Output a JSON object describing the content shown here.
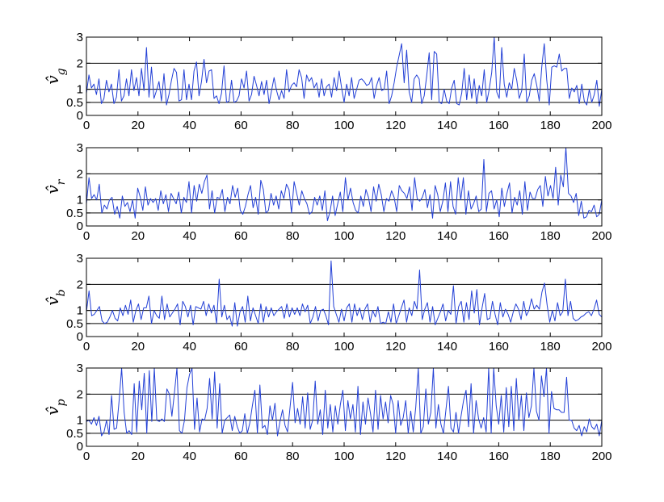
{
  "chart_data": [
    {
      "type": "line",
      "ylabel": "v̂g",
      "ylabel_base": "v̂",
      "ylabel_sub": "g",
      "xlim": [
        0,
        200
      ],
      "ylim": [
        0,
        3
      ],
      "xticks": [
        0,
        20,
        40,
        60,
        80,
        100,
        120,
        140,
        160,
        180,
        200
      ],
      "yticks": [
        0,
        0.5,
        1,
        2,
        3
      ],
      "hlines": [
        0.5,
        1,
        2
      ],
      "series": [
        {
          "color": "#2340d6",
          "values": [
            0.85,
            1.55,
            1.05,
            1.2,
            0.8,
            1.4,
            0.45,
            0.65,
            1.35,
            0.9,
            1.2,
            0.45,
            0.7,
            1.75,
            0.55,
            0.75,
            1.4,
            0.75,
            1.75,
            0.95,
            1.45,
            0.75,
            1.8,
            0.95,
            2.6,
            0.7,
            1.85,
            0.65,
            0.95,
            1.3,
            0.55,
            1.6,
            0.4,
            0.8,
            1.35,
            1.8,
            1.65,
            0.55,
            0.6,
            1.75,
            0.6,
            1.2,
            0.6,
            1.7,
            2.05,
            0.75,
            1.3,
            2.15,
            1.25,
            1.7,
            1.75,
            0.65,
            0.75,
            0.45,
            0.85,
            1.9,
            0.5,
            0.55,
            1.35,
            0.5,
            0.55,
            0.75,
            1.4,
            1.05,
            1.7,
            0.55,
            0.8,
            1.5,
            1.15,
            0.75,
            1.3,
            0.8,
            1.35,
            0.45,
            0.95,
            1.45,
            0.95,
            0.6,
            0.95,
            0.65,
            1.75,
            0.9,
            1.15,
            1.25,
            1.1,
            1.75,
            1.45,
            0.65,
            1.55,
            1.3,
            1.45,
            1.05,
            1.25,
            0.7,
            1.4,
            0.75,
            1.1,
            1.2,
            0.7,
            1.45,
            0.95,
            1.7,
            1.05,
            0.5,
            1.2,
            0.75,
            1.45,
            0.65,
            1.0,
            1.35,
            1.4,
            1.3,
            1.15,
            1.2,
            1.45,
            0.65,
            1.15,
            1.45,
            0.95,
            1.0,
            1.7,
            0.45,
            0.75,
            1.25,
            1.85,
            2.3,
            2.75,
            1.25,
            2.5,
            0.9,
            0.5,
            1.4,
            1.55,
            1.4,
            0.45,
            0.75,
            1.5,
            2.4,
            0.6,
            2.45,
            2.35,
            0.5,
            0.45,
            1.0,
            0.55,
            0.45,
            1.05,
            1.35,
            0.45,
            0.4,
            0.85,
            1.8,
            0.6,
            1.55,
            0.65,
            1.4,
            0.45,
            1.15,
            0.75,
            1.75,
            0.5,
            1.0,
            1.65,
            3.0,
            0.9,
            0.65,
            2.6,
            1.2,
            0.7,
            1.25,
            1.0,
            1.8,
            1.35,
            0.65,
            0.95,
            2.35,
            0.5,
            0.75,
            1.35,
            1.6,
            1.15,
            0.55,
            1.85,
            2.75,
            1.35,
            0.4,
            1.85,
            1.9,
            1.85,
            2.35,
            1.7,
            1.8,
            1.8,
            0.65,
            1.05,
            0.9,
            1.15,
            0.45,
            1.2,
            0.55,
            0.4,
            1.0,
            0.5,
            0.8,
            1.35,
            0.35,
            1.0
          ]
        }
      ]
    },
    {
      "type": "line",
      "ylabel": "v̂r",
      "ylabel_base": "v̂",
      "ylabel_sub": "r",
      "xlim": [
        0,
        200
      ],
      "ylim": [
        0,
        3
      ],
      "xticks": [
        0,
        20,
        40,
        60,
        80,
        100,
        120,
        140,
        160,
        180,
        200
      ],
      "yticks": [
        0,
        0.5,
        1,
        2,
        3
      ],
      "hlines": [
        0.5,
        1,
        2
      ],
      "series": [
        {
          "color": "#2340d6",
          "values": [
            0.85,
            1.85,
            1.05,
            1.2,
            1.0,
            1.6,
            0.5,
            0.8,
            0.65,
            1.0,
            1.1,
            0.45,
            0.75,
            0.3,
            1.15,
            0.75,
            0.9,
            0.55,
            1.0,
            0.3,
            1.45,
            1.1,
            0.6,
            1.5,
            0.8,
            1.05,
            0.9,
            1.05,
            0.6,
            1.35,
            0.85,
            1.2,
            0.55,
            1.25,
            1.05,
            0.85,
            1.3,
            0.5,
            1.1,
            0.9,
            1.7,
            0.5,
            1.55,
            0.95,
            1.6,
            1.25,
            1.7,
            1.95,
            0.65,
            1.35,
            0.5,
            1.1,
            1.05,
            1.4,
            0.55,
            1.1,
            0.85,
            1.55,
            1.1,
            1.45,
            0.6,
            0.45,
            0.75,
            1.2,
            1.55,
            0.7,
            1.1,
            0.45,
            1.75,
            1.4,
            0.5,
            0.6,
            1.25,
            0.8,
            1.15,
            0.65,
            1.35,
            1.05,
            1.6,
            1.4,
            0.5,
            1.7,
            1.25,
            0.8,
            1.35,
            1.05,
            0.85,
            0.45,
            0.55,
            1.1,
            0.8,
            1.15,
            0.6,
            1.35,
            0.2,
            0.55,
            1.15,
            0.4,
            0.85,
            1.3,
            0.55,
            1.85,
            1.0,
            1.45,
            0.9,
            0.6,
            0.5,
            1.15,
            0.75,
            1.4,
            1.1,
            0.55,
            1.5,
            0.95,
            1.6,
            1.2,
            0.55,
            1.05,
            0.95,
            1.35,
            1.1,
            0.55,
            1.55,
            1.35,
            1.25,
            1.05,
            1.5,
            0.6,
            1.85,
            1.05,
            0.95,
            1.1,
            1.4,
            0.7,
            1.2,
            0.3,
            1.55,
            1.2,
            0.55,
            0.95,
            1.65,
            0.55,
            1.7,
            0.75,
            0.45,
            1.85,
            1.0,
            1.85,
            0.45,
            1.35,
            0.65,
            0.85,
            1.15,
            0.55,
            0.65,
            2.55,
            0.55,
            1.25,
            1.35,
            0.65,
            1.0,
            0.35,
            1.45,
            0.75,
            1.25,
            1.65,
            0.5,
            1.1,
            0.8,
            1.35,
            0.45,
            1.7,
            0.6,
            1.3,
            1.05,
            1.05,
            1.4,
            1.55,
            0.75,
            1.9,
            1.15,
            1.55,
            1.05,
            2.25,
            0.8,
            1.95,
            1.5,
            3.0,
            1.25,
            1.15,
            0.9,
            1.25,
            0.4,
            0.95,
            0.3,
            0.35,
            0.6,
            0.55,
            0.8,
            0.35,
            0.45,
            1.0
          ]
        }
      ]
    },
    {
      "type": "line",
      "ylabel": "v̂b",
      "ylabel_base": "v̂",
      "ylabel_sub": "b",
      "xlim": [
        0,
        200
      ],
      "ylim": [
        0,
        3
      ],
      "xticks": [
        0,
        20,
        40,
        60,
        80,
        100,
        120,
        140,
        160,
        180,
        200
      ],
      "yticks": [
        0,
        0.5,
        1,
        2,
        3
      ],
      "hlines": [
        0.5,
        1,
        2
      ],
      "series": [
        {
          "color": "#2340d6",
          "values": [
            0.95,
            1.75,
            0.8,
            0.85,
            1.0,
            1.15,
            0.6,
            0.5,
            0.55,
            0.75,
            1.0,
            0.7,
            0.6,
            1.1,
            0.8,
            1.2,
            0.85,
            1.4,
            0.55,
            1.0,
            1.25,
            0.65,
            1.1,
            1.1,
            1.55,
            0.5,
            1.0,
            0.8,
            0.7,
            1.55,
            0.65,
            1.25,
            0.75,
            0.9,
            1.05,
            1.25,
            0.45,
            1.35,
            1.15,
            0.75,
            1.2,
            0.45,
            1.15,
            1.1,
            1.05,
            1.35,
            0.8,
            1.25,
            0.9,
            1.2,
            0.5,
            2.2,
            0.75,
            1.2,
            0.65,
            0.8,
            0.4,
            1.3,
            0.4,
            0.95,
            1.15,
            0.55,
            1.55,
            0.6,
            1.1,
            0.8,
            0.5,
            1.25,
            0.55,
            1.15,
            0.75,
            1.1,
            0.8,
            0.95,
            1.05,
            1.15,
            0.7,
            1.25,
            0.75,
            1.1,
            0.85,
            1.1,
            0.8,
            1.25,
            0.95,
            1.2,
            0.5,
            0.75,
            1.15,
            0.6,
            1.0,
            1.05,
            0.8,
            0.45,
            2.9,
            1.15,
            0.85,
            0.55,
            1.05,
            0.6,
            1.1,
            1.25,
            0.55,
            1.25,
            0.8,
            1.1,
            0.65,
            1.05,
            1.25,
            0.55,
            1.0,
            0.75,
            1.15,
            0.5,
            0.55,
            0.5,
            0.95,
            0.55,
            1.25,
            0.5,
            0.8,
            1.1,
            1.4,
            0.55,
            1.1,
            0.8,
            1.35,
            1.05,
            2.55,
            0.65,
            1.05,
            1.3,
            0.55,
            1.15,
            0.45,
            0.7,
            0.95,
            1.25,
            0.6,
            1.0,
            0.85,
            1.95,
            0.5,
            1.15,
            1.35,
            0.55,
            1.3,
            0.65,
            1.75,
            0.9,
            1.8,
            0.45,
            1.1,
            1.65,
            0.65,
            0.7,
            1.35,
            0.85,
            0.45,
            1.3,
            0.75,
            1.05,
            0.85,
            0.55,
            0.95,
            1.25,
            1.05,
            0.65,
            1.35,
            0.8,
            1.0,
            1.45,
            1.05,
            1.2,
            1.05,
            1.7,
            2.05,
            1.2,
            0.55,
            1.0,
            0.6,
            1.3,
            0.8,
            0.95,
            2.2,
            0.8,
            1.35,
            0.7,
            0.6,
            0.65,
            0.75,
            0.8,
            0.9,
            0.95,
            0.8,
            1.05,
            1.4,
            0.85,
            0.75
          ]
        }
      ]
    },
    {
      "type": "line",
      "ylabel": "v̂p",
      "ylabel_base": "v̂",
      "ylabel_sub": "p",
      "xlim": [
        0,
        200
      ],
      "ylim": [
        0,
        3
      ],
      "xticks": [
        0,
        20,
        40,
        60,
        80,
        100,
        120,
        140,
        160,
        180,
        200
      ],
      "yticks": [
        0,
        0.5,
        1,
        2,
        3
      ],
      "hlines": [
        0.5,
        1,
        2
      ],
      "series": [
        {
          "color": "#2340d6",
          "values": [
            0.95,
            1.0,
            0.85,
            1.1,
            0.8,
            1.15,
            0.4,
            0.55,
            1.0,
            0.45,
            1.95,
            0.65,
            0.7,
            1.75,
            3.0,
            1.3,
            0.5,
            0.6,
            0.45,
            2.4,
            0.55,
            2.5,
            1.4,
            2.8,
            0.5,
            2.9,
            0.95,
            3.0,
            1.0,
            0.95,
            1.05,
            0.95,
            2.2,
            2.0,
            1.15,
            2.05,
            3.0,
            0.6,
            0.5,
            1.0,
            2.25,
            2.75,
            3.0,
            0.65,
            1.85,
            0.55,
            1.05,
            1.0,
            1.45,
            2.6,
            1.05,
            2.85,
            0.7,
            2.4,
            0.5,
            1.0,
            1.1,
            1.2,
            0.6,
            1.15,
            0.75,
            0.5,
            0.6,
            1.25,
            0.5,
            0.9,
            1.55,
            2.15,
            0.5,
            2.35,
            0.7,
            0.8,
            0.45,
            1.55,
            1.0,
            1.65,
            0.4,
            0.95,
            1.4,
            0.8,
            0.55,
            1.5,
            2.45,
            0.9,
            1.45,
            0.85,
            1.9,
            0.7,
            2.05,
            0.65,
            1.0,
            2.5,
            0.85,
            1.4,
            0.45,
            2.15,
            0.7,
            1.6,
            0.55,
            1.55,
            0.85,
            1.6,
            2.15,
            0.6,
            1.75,
            1.05,
            1.6,
            0.55,
            2.3,
            0.45,
            1.7,
            0.85,
            1.85,
            1.25,
            0.55,
            2.15,
            0.65,
            1.95,
            1.05,
            1.7,
            0.9,
            1.95,
            1.6,
            0.5,
            1.75,
            0.8,
            1.1,
            1.75,
            0.5,
            1.35,
            0.55,
            1.5,
            3.0,
            0.5,
            0.75,
            2.2,
            0.85,
            1.3,
            3.0,
            0.7,
            1.6,
            0.85,
            0.5,
            1.4,
            2.3,
            0.7,
            0.55,
            1.3,
            0.5,
            1.15,
            1.75,
            2.15,
            0.75,
            2.4,
            0.5,
            1.75,
            1.05,
            0.7,
            1.1,
            0.55,
            3.0,
            0.5,
            3.0,
            1.55,
            0.85,
            1.95,
            0.55,
            2.25,
            0.75,
            2.3,
            0.6,
            2.6,
            1.0,
            1.95,
            0.6,
            2.05,
            1.1,
            1.55,
            3.0,
            1.35,
            1.0,
            2.7,
            1.9,
            3.0,
            0.5,
            2.1,
            1.45,
            1.4,
            1.4,
            1.3,
            1.3,
            2.65,
            1.0,
            1.0,
            0.7,
            0.6,
            0.8,
            0.4,
            0.75,
            0.55,
            1.05,
            0.75,
            0.65,
            0.85,
            0.4,
            1.0
          ]
        }
      ]
    }
  ]
}
